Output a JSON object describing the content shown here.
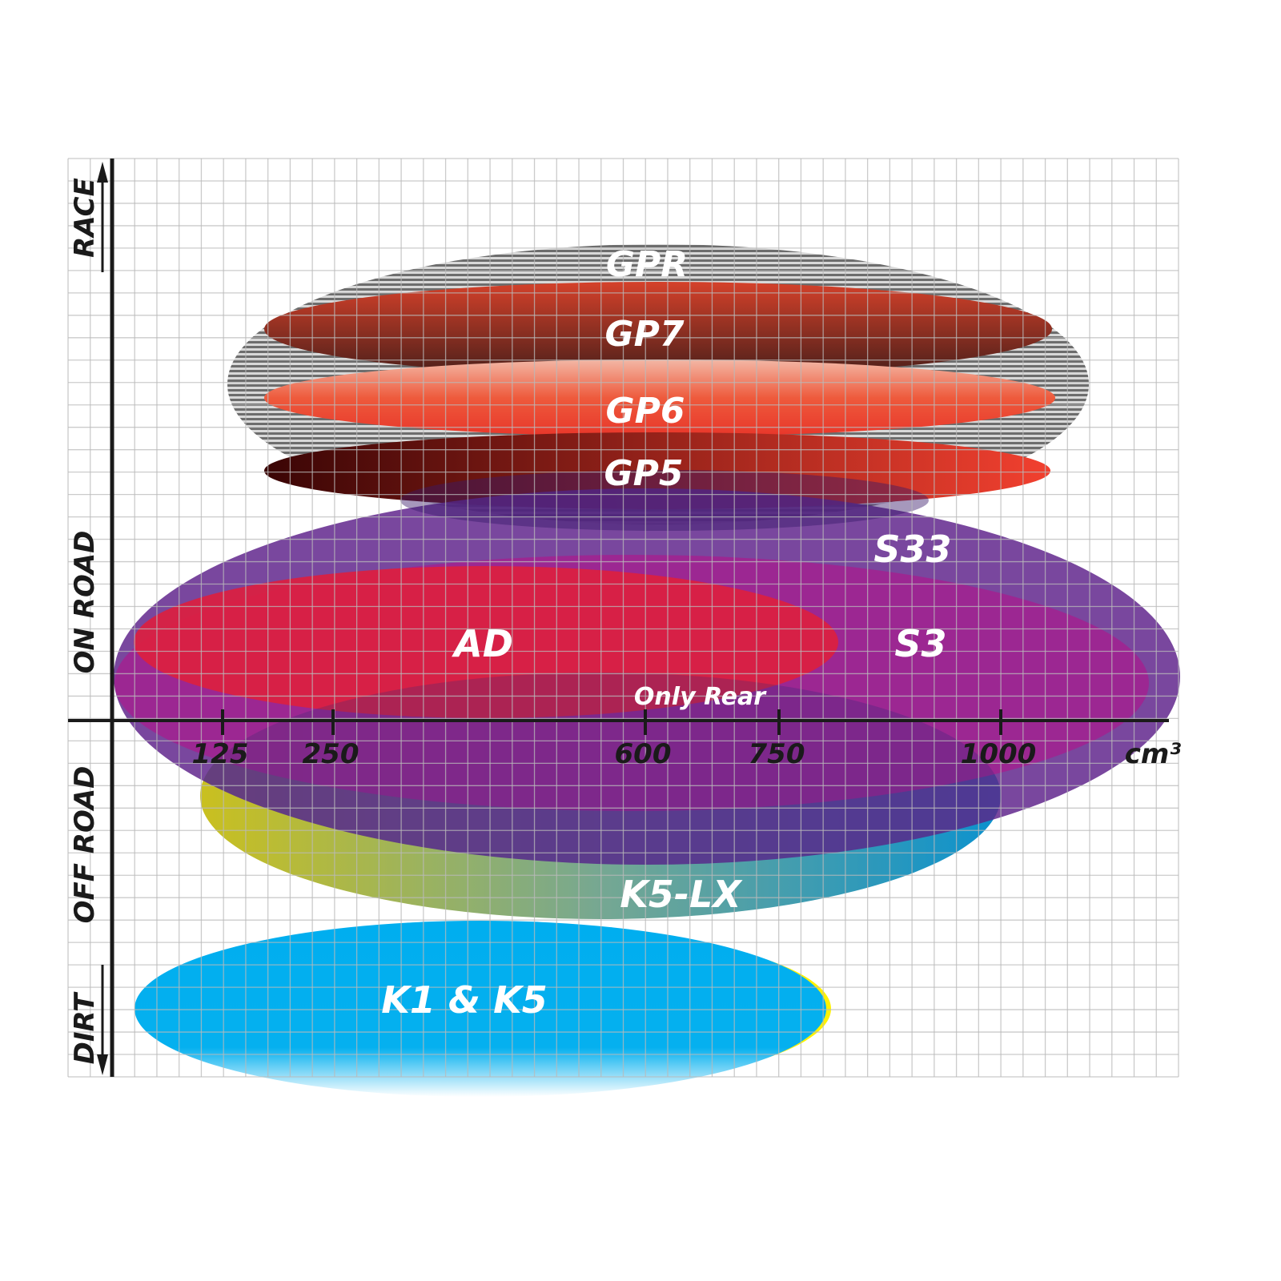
{
  "chart_data": {
    "type": "diagram",
    "x_unit": "cm³",
    "x_ticks": [
      "125",
      "250",
      "600",
      "750",
      "1000"
    ],
    "y_categories": [
      "RACE",
      "ON ROAD",
      "OFF ROAD",
      "DIRT"
    ],
    "grid": true,
    "products": [
      {
        "name": "GPR",
        "color": "#8a8a8a"
      },
      {
        "name": "GP7",
        "color": "#c0392b"
      },
      {
        "name": "GP6",
        "color": "#ef4130"
      },
      {
        "name": "GP5",
        "color": "#6b0d0d"
      },
      {
        "name": "S33",
        "color": "#662d91"
      },
      {
        "name": "S3",
        "color": "#a2228f"
      },
      {
        "name": "AD",
        "color": "#dc2040"
      },
      {
        "name": "K5-LX",
        "color": "#1bb7e0"
      },
      {
        "name": "K1 & K5",
        "color": "#00aeef"
      }
    ],
    "annotation": "Only Rear"
  }
}
